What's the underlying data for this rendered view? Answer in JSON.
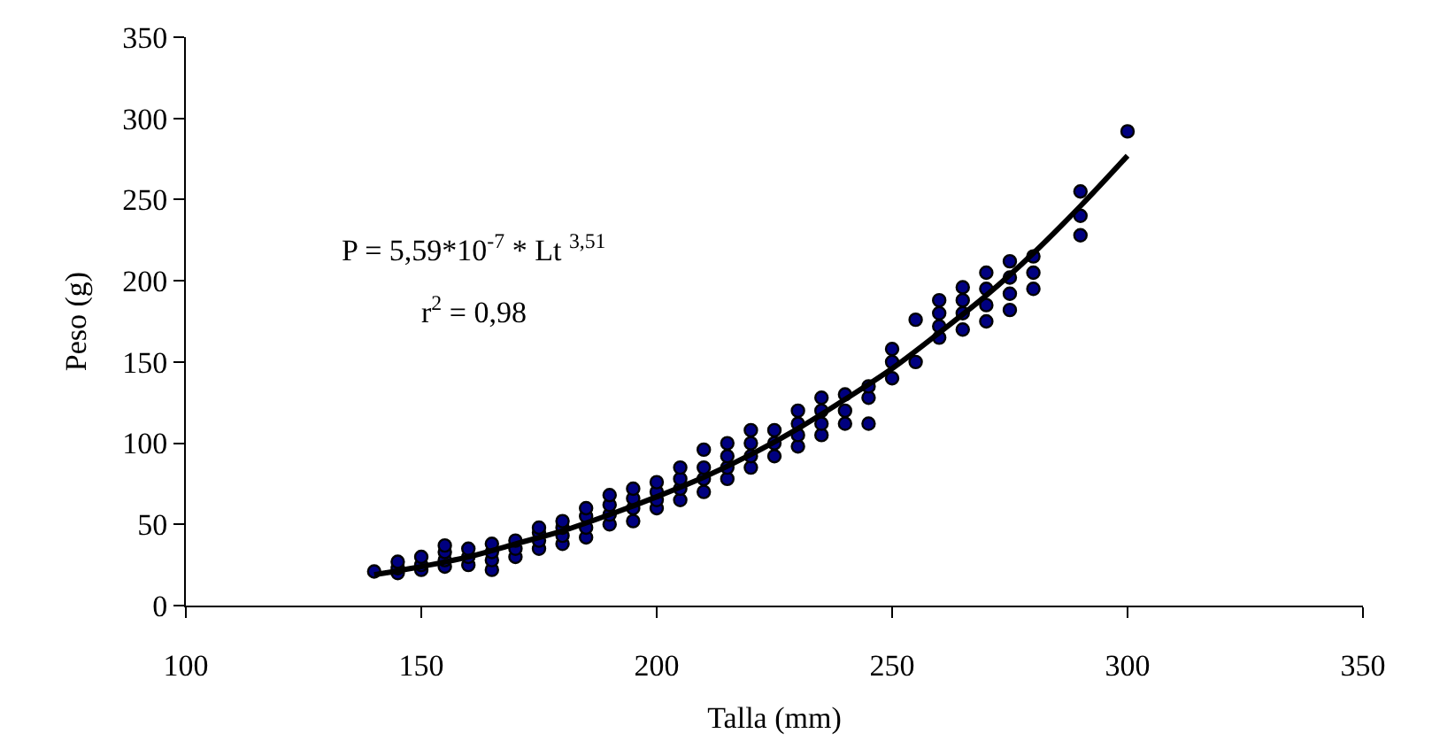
{
  "chart_data": {
    "type": "scatter",
    "xlabel": "Talla (mm)",
    "ylabel": "Peso (g)",
    "xlim": [
      100,
      350
    ],
    "xticks": [
      100,
      150,
      200,
      250,
      300,
      350
    ],
    "ylim": [
      0,
      350
    ],
    "yticks": [
      0,
      50,
      100,
      150,
      200,
      250,
      300,
      350
    ],
    "marker": "circle",
    "annotations": [
      "P = 5,59*10$^{-7}$ * Lt $^{3,51}$",
      "r$^{2}$ = 0,98"
    ],
    "series": [
      {
        "color": "#000080",
        "x": [
          140,
          145,
          145,
          145,
          150,
          150,
          150,
          155,
          155,
          155,
          155,
          160,
          160,
          160,
          165,
          165,
          165,
          165,
          170,
          170,
          170,
          175,
          175,
          175,
          175,
          180,
          180,
          180,
          180,
          185,
          185,
          185,
          185,
          190,
          190,
          190,
          190,
          195,
          195,
          195,
          195,
          200,
          200,
          200,
          200,
          205,
          205,
          205,
          205,
          210,
          210,
          210,
          210,
          215,
          215,
          215,
          215,
          220,
          220,
          220,
          220,
          225,
          225,
          225,
          230,
          230,
          230,
          230,
          235,
          235,
          235,
          235,
          240,
          240,
          240,
          245,
          245,
          245,
          250,
          250,
          250,
          255,
          255,
          260,
          260,
          260,
          260,
          265,
          265,
          265,
          265,
          270,
          270,
          270,
          270,
          275,
          275,
          275,
          275,
          280,
          280,
          280,
          290,
          290,
          290,
          300
        ],
        "values": [
          21,
          20,
          23,
          27,
          22,
          25,
          30,
          24,
          28,
          33,
          37,
          25,
          30,
          35,
          22,
          28,
          33,
          38,
          30,
          35,
          40,
          35,
          40,
          45,
          48,
          38,
          43,
          48,
          52,
          42,
          48,
          55,
          60,
          50,
          56,
          62,
          68,
          52,
          60,
          66,
          72,
          60,
          65,
          70,
          76,
          65,
          72,
          78,
          85,
          70,
          78,
          85,
          96,
          78,
          85,
          92,
          100,
          85,
          92,
          100,
          108,
          92,
          100,
          108,
          98,
          105,
          112,
          120,
          105,
          112,
          120,
          128,
          112,
          120,
          130,
          112,
          128,
          135,
          140,
          150,
          158,
          150,
          176,
          165,
          172,
          180,
          188,
          170,
          180,
          188,
          196,
          175,
          185,
          195,
          205,
          182,
          192,
          202,
          212,
          195,
          205,
          215,
          228,
          240,
          255,
          292
        ]
      },
      {
        "type": "line",
        "color": "#000000",
        "marker": "none",
        "line_style": "solid",
        "x": [
          140,
          150,
          160,
          170,
          180,
          190,
          200,
          210,
          220,
          230,
          240,
          250,
          260,
          270,
          280,
          290,
          300
        ],
        "values": [
          19,
          24,
          30,
          38,
          46,
          56,
          67,
          79,
          93,
          109,
          127,
          146,
          168,
          191,
          217,
          246,
          277
        ]
      }
    ]
  }
}
